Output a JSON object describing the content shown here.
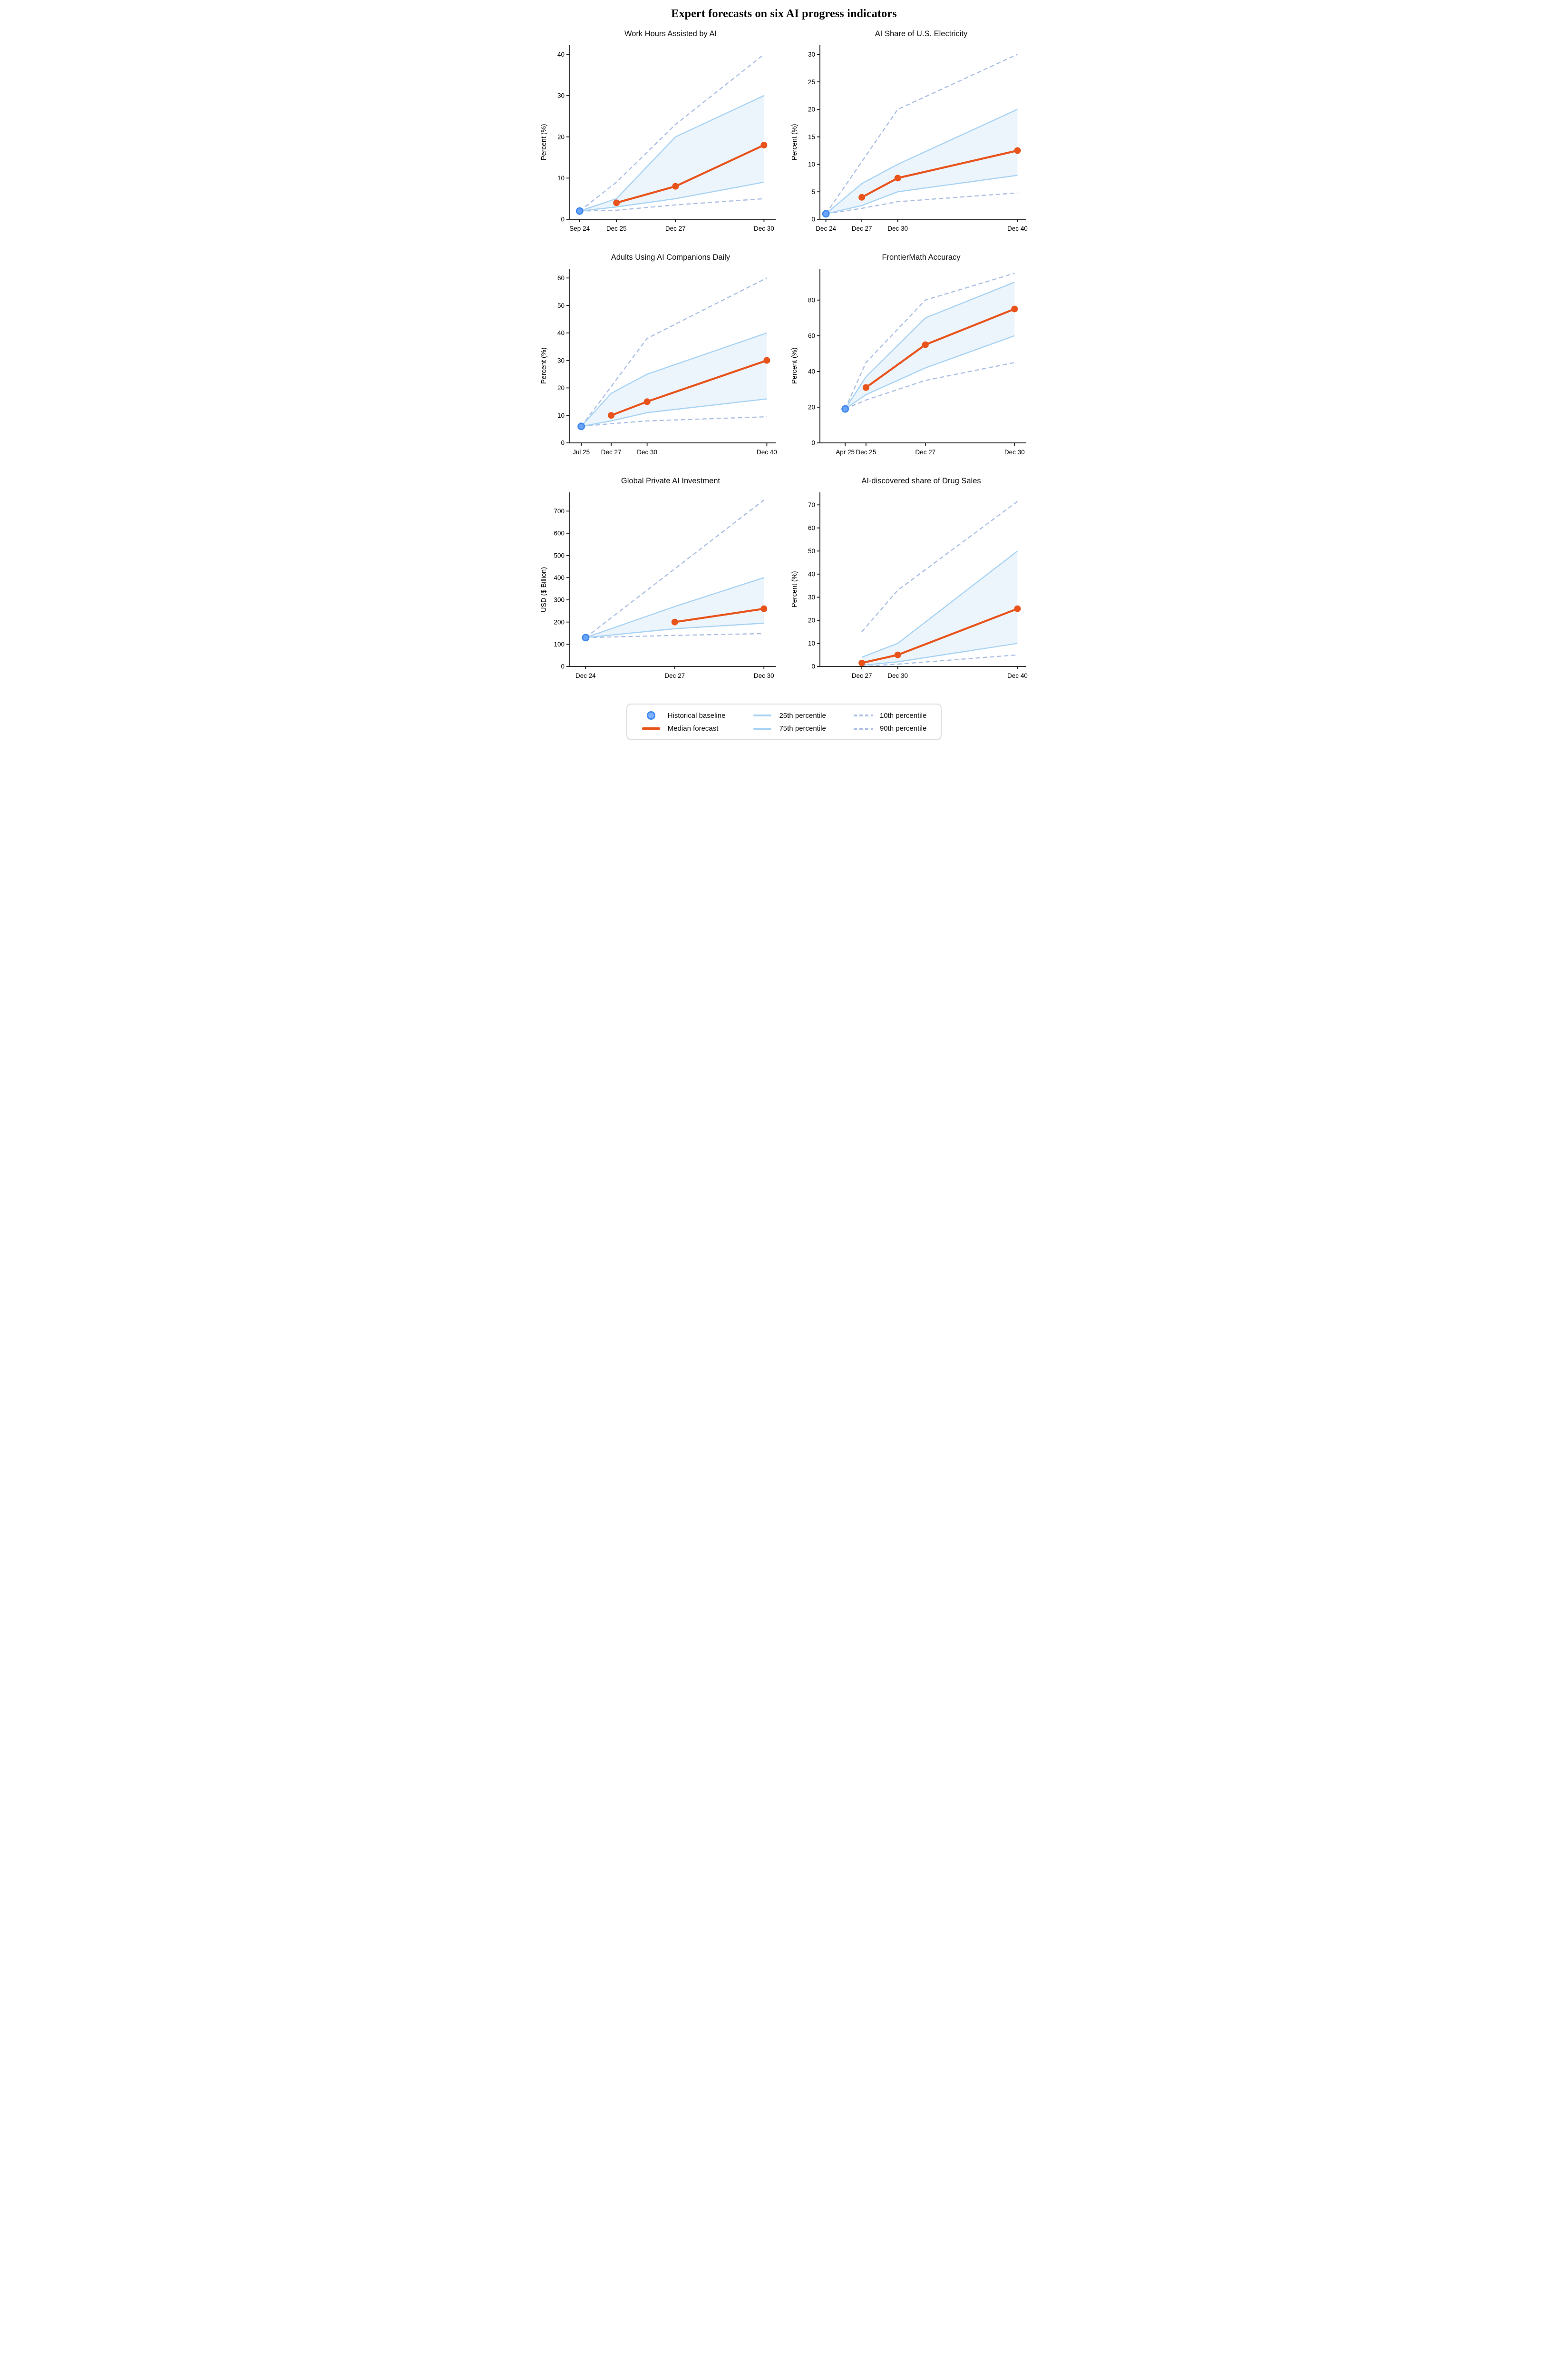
{
  "page": {
    "title": "Expert forecasts on six AI progress indicators"
  },
  "colors": {
    "median": "#E8531B",
    "baseline_fill": "#68A4F8",
    "baseline_edge": "#3E86EF",
    "percentile_solid": "#A7D3F4",
    "percentile_dashed": "#ABBFE3",
    "band_fill": "#ECF4FC",
    "axis": "#1A1A1A"
  },
  "legend": {
    "items": [
      {
        "id": "historical-baseline",
        "label": "Historical baseline",
        "swatch": "dot"
      },
      {
        "id": "p25",
        "label": "25th percentile",
        "swatch": "solid"
      },
      {
        "id": "p10",
        "label": "10th percentile",
        "swatch": "dash"
      },
      {
        "id": "median-forecast",
        "label": "Median forecast",
        "swatch": "median"
      },
      {
        "id": "p75",
        "label": "75th percentile",
        "swatch": "solid"
      },
      {
        "id": "p90",
        "label": "90th percentile",
        "swatch": "dash"
      }
    ]
  },
  "chart_data": [
    {
      "type": "line",
      "title": "Work Hours Assisted by AI",
      "ylabel": "Percent (%)",
      "x_domain": [
        2024.4,
        2031.3
      ],
      "y_max": 42,
      "y_ticks": [
        0,
        10,
        20,
        30,
        40
      ],
      "x_ticks": [
        {
          "label": "Sep 24",
          "year": 2024.75
        },
        {
          "label": "Dec 25",
          "year": 2026
        },
        {
          "label": "Dec 27",
          "year": 2028
        },
        {
          "label": "Dec 30",
          "year": 2031
        }
      ],
      "baseline": {
        "label": "Sep 24",
        "year": 2024.75,
        "value": 2
      },
      "forecast_labels": [
        "Dec 25",
        "Dec 27",
        "Dec 30"
      ],
      "forecast_years": [
        2026,
        2028,
        2031
      ],
      "series": {
        "median": [
          4,
          8,
          18
        ],
        "p25": [
          3,
          5,
          9
        ],
        "p75": [
          5,
          20,
          30
        ],
        "p10": [
          2.2,
          3.5,
          5
        ],
        "p90": [
          9,
          23,
          40
        ]
      }
    },
    {
      "type": "line",
      "title": "AI Share of U.S. Electricity",
      "ylabel": "Percent (%)",
      "x_domain": [
        2024.5,
        2041.5
      ],
      "y_max": 31.5,
      "y_ticks": [
        0,
        5,
        10,
        15,
        20,
        25,
        30
      ],
      "x_ticks": [
        {
          "label": "Dec 24",
          "year": 2025
        },
        {
          "label": "Dec 27",
          "year": 2028
        },
        {
          "label": "Dec 30",
          "year": 2031
        },
        {
          "label": "Dec 40",
          "year": 2041
        }
      ],
      "baseline": {
        "label": "Dec 24",
        "year": 2025,
        "value": 1
      },
      "forecast_labels": [
        "Dec 27",
        "Dec 30",
        "Dec 40"
      ],
      "forecast_years": [
        2028,
        2031,
        2041
      ],
      "series": {
        "median": [
          4,
          7.5,
          12.5
        ],
        "p25": [
          2.5,
          5,
          8
        ],
        "p75": [
          6.5,
          10,
          20
        ],
        "p10": [
          2,
          3.2,
          4.8
        ],
        "p90": [
          10.5,
          20,
          30
        ]
      }
    },
    {
      "type": "line",
      "title": "Adults Using AI Companions Daily",
      "ylabel": "Percent (%)",
      "x_domain": [
        2024.5,
        2041.5
      ],
      "y_max": 63,
      "y_ticks": [
        0,
        10,
        20,
        30,
        40,
        50,
        60
      ],
      "x_ticks": [
        {
          "label": "Jul 25",
          "year": 2025.5
        },
        {
          "label": "Dec 27",
          "year": 2028
        },
        {
          "label": "Dec 30",
          "year": 2031
        },
        {
          "label": "Dec 40",
          "year": 2041
        }
      ],
      "baseline": {
        "label": "Jul 25",
        "year": 2025.5,
        "value": 6
      },
      "forecast_labels": [
        "Dec 27",
        "Dec 30",
        "Dec 40"
      ],
      "forecast_years": [
        2028,
        2031,
        2041
      ],
      "series": {
        "median": [
          10,
          15,
          30
        ],
        "p25": [
          8,
          11,
          16
        ],
        "p75": [
          18,
          25,
          40
        ],
        "p10": [
          7,
          8,
          9.5
        ],
        "p90": [
          20.5,
          38,
          60
        ]
      }
    },
    {
      "type": "line",
      "title": "FrontierMath Accuracy",
      "ylabel": "Percent (%)",
      "x_domain": [
        2024.45,
        2031.3
      ],
      "y_max": 97,
      "y_ticks": [
        0,
        20,
        40,
        60,
        80
      ],
      "x_ticks": [
        {
          "label": "Apr 25",
          "year": 2025.3
        },
        {
          "label": "Dec 25",
          "year": 2026
        },
        {
          "label": "Dec 27",
          "year": 2028
        },
        {
          "label": "Dec 30",
          "year": 2031
        }
      ],
      "baseline": {
        "label": "Apr 25",
        "year": 2025.3,
        "value": 19
      },
      "forecast_labels": [
        "Dec 25",
        "Dec 27",
        "Dec 30"
      ],
      "forecast_years": [
        2026,
        2028,
        2031
      ],
      "series": {
        "median": [
          31,
          55,
          75
        ],
        "p25": [
          27,
          42,
          60
        ],
        "p75": [
          37,
          70,
          90
        ],
        "p10": [
          24,
          35,
          45
        ],
        "p90": [
          45,
          80,
          95
        ]
      }
    },
    {
      "type": "line",
      "title": "Global Private AI Investment",
      "ylabel": "USD ($ Billion)",
      "x_domain": [
        2024.45,
        2031.3
      ],
      "y_max": 780,
      "y_ticks": [
        0,
        100,
        200,
        300,
        400,
        500,
        600,
        700
      ],
      "x_ticks": [
        {
          "label": "Dec 24",
          "year": 2025
        },
        {
          "label": "Dec 27",
          "year": 2028
        },
        {
          "label": "Dec 30",
          "year": 2031
        }
      ],
      "baseline": {
        "label": "Dec 24",
        "year": 2025,
        "value": 130
      },
      "forecast_labels": [
        "Dec 27",
        "Dec 30"
      ],
      "forecast_years": [
        2028,
        2031
      ],
      "series": {
        "median": [
          200,
          260
        ],
        "p25": [
          170,
          195
        ],
        "p75": [
          270,
          400
        ],
        "p10": [
          140,
          148
        ],
        "p90": [
          440,
          750
        ]
      }
    },
    {
      "type": "line",
      "title": "AI-discovered share of Drug Sales",
      "ylabel": "Percent (%)",
      "x_domain": [
        2024.5,
        2041.5
      ],
      "y_max": 75,
      "y_ticks": [
        0,
        10,
        20,
        30,
        40,
        50,
        60,
        70
      ],
      "x_ticks": [
        {
          "label": "Dec 27",
          "year": 2028
        },
        {
          "label": "Dec 30",
          "year": 2031
        },
        {
          "label": "Dec 40",
          "year": 2041
        }
      ],
      "baseline": null,
      "forecast_labels": [
        "Dec 27",
        "Dec 30",
        "Dec 40"
      ],
      "forecast_years": [
        2028,
        2031,
        2041
      ],
      "series": {
        "median": [
          1.5,
          5,
          25
        ],
        "p25": [
          0.5,
          2,
          10
        ],
        "p75": [
          4,
          10,
          50
        ],
        "p10": [
          0,
          1,
          5
        ],
        "p90": [
          15,
          33,
          71.5
        ]
      }
    }
  ]
}
